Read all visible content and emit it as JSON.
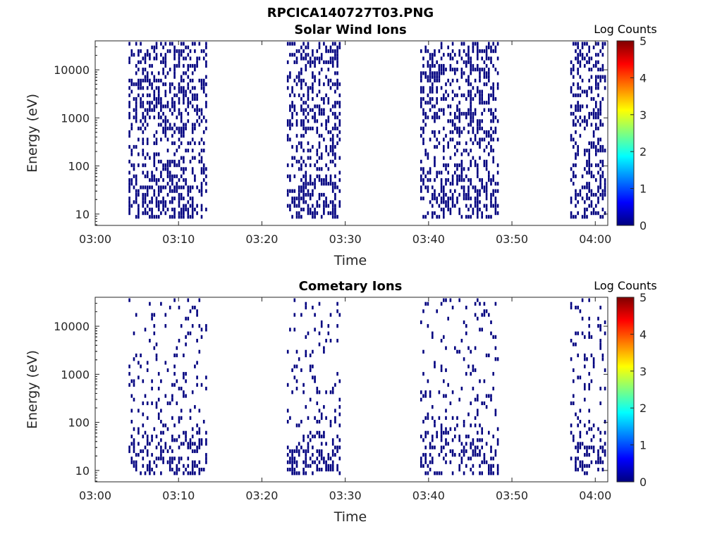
{
  "figure_title": "RPCICA140727T03.PNG",
  "colormap": {
    "name": "jet",
    "stops": [
      "#00007f",
      "#0000ff",
      "#007fff",
      "#00ffff",
      "#7fff7f",
      "#ffff00",
      "#ff7f00",
      "#ff0000",
      "#7f0000"
    ]
  },
  "chart_data": [
    {
      "type": "heatmap",
      "title": "Solar Wind Ions",
      "xlabel": "Time",
      "ylabel": "Energy (eV)",
      "x_ticks": [
        "03:00",
        "03:10",
        "03:20",
        "03:30",
        "03:40",
        "03:50",
        "04:00"
      ],
      "y_ticks": [
        "10",
        "100",
        "1000",
        "10000"
      ],
      "y_scale": "log",
      "xlim_minutes": [
        0,
        61.5
      ],
      "ylim_eV": [
        5.8,
        40000
      ],
      "colorbar": {
        "title": "Log Counts",
        "ticks": [
          "0",
          "1",
          "2",
          "3",
          "4",
          "5"
        ],
        "range": [
          0,
          5
        ]
      },
      "data_color_value": 0,
      "bursts": [
        {
          "start": "03:04",
          "end": "03:13"
        },
        {
          "start": "03:23",
          "end": "03:29"
        },
        {
          "start": "03:39",
          "end": "03:48"
        },
        {
          "start": "03:57",
          "end": "04:01"
        }
      ]
    },
    {
      "type": "heatmap",
      "title": "Cometary Ions",
      "xlabel": "Time",
      "ylabel": "Energy (eV)",
      "x_ticks": [
        "03:00",
        "03:10",
        "03:20",
        "03:30",
        "03:40",
        "03:50",
        "04:00"
      ],
      "y_ticks": [
        "10",
        "100",
        "1000",
        "10000"
      ],
      "y_scale": "log",
      "xlim_minutes": [
        0,
        61.5
      ],
      "ylim_eV": [
        5.8,
        40000
      ],
      "colorbar": {
        "title": "Log Counts",
        "ticks": [
          "0",
          "1",
          "2",
          "3",
          "4",
          "5"
        ],
        "range": [
          0,
          5
        ]
      },
      "data_color_value": 0,
      "bursts": [
        {
          "start": "03:04",
          "end": "03:13"
        },
        {
          "start": "03:23",
          "end": "03:29"
        },
        {
          "start": "03:39",
          "end": "03:48"
        },
        {
          "start": "03:57",
          "end": "04:01"
        }
      ]
    }
  ]
}
